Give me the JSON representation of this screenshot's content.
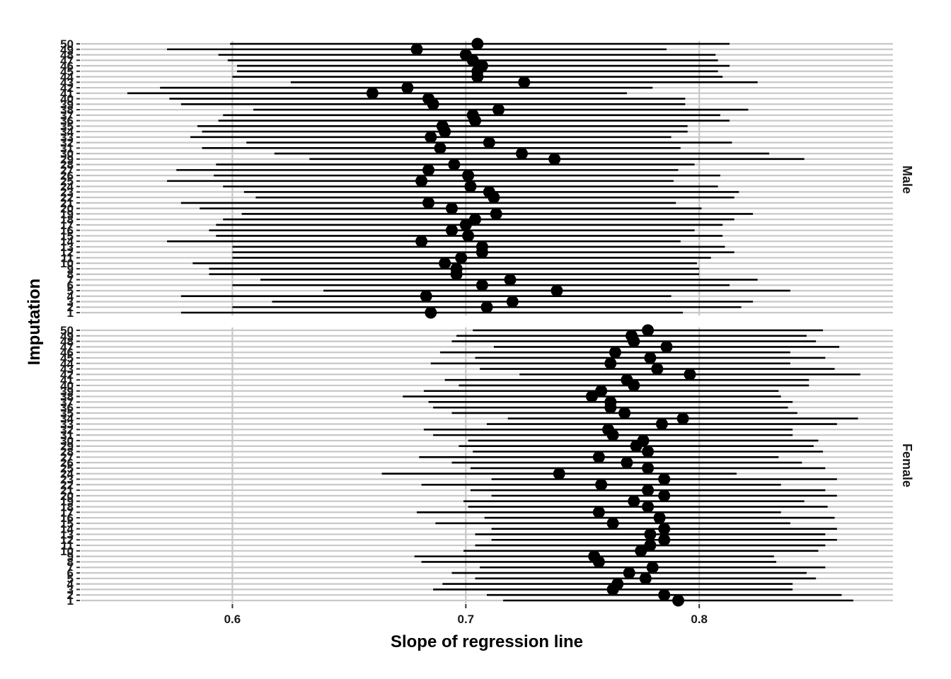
{
  "chart_data": {
    "type": "errorbar-dot",
    "xlabel": "Slope of regression line",
    "ylabel": "Imputation",
    "x_ticks": [
      "0.6",
      "0.7",
      "0.8"
    ],
    "xlim": [
      0.535,
      0.883
    ],
    "ylim": [
      1,
      50
    ],
    "grid": true,
    "colors": {
      "grid": "#c8c8c8",
      "mark": "#000000",
      "background": "#ffffff"
    },
    "panels": [
      {
        "name": "Male",
        "estimates": [
          0.685,
          0.709,
          0.72,
          0.683,
          0.739,
          0.707,
          0.719,
          0.696,
          0.696,
          0.691,
          0.698,
          0.707,
          0.707,
          0.681,
          0.701,
          0.694,
          0.7,
          0.704,
          0.713,
          0.694,
          0.684,
          0.712,
          0.71,
          0.702,
          0.681,
          0.701,
          0.684,
          0.695,
          0.738,
          0.724,
          0.689,
          0.71,
          0.685,
          0.691,
          0.69,
          0.704,
          0.703,
          0.714,
          0.686,
          0.684,
          0.66,
          0.675,
          0.725,
          0.705,
          0.705,
          0.707,
          0.703,
          0.7,
          0.679,
          0.705
        ],
        "lower": [
          0.578,
          0.6,
          0.617,
          0.578,
          0.639,
          0.6,
          0.612,
          0.59,
          0.59,
          0.583,
          0.6,
          0.6,
          0.6,
          0.572,
          0.593,
          0.59,
          0.593,
          0.596,
          0.604,
          0.586,
          0.578,
          0.61,
          0.605,
          0.596,
          0.572,
          0.592,
          0.576,
          0.593,
          0.633,
          0.618,
          0.587,
          0.606,
          0.582,
          0.587,
          0.585,
          0.594,
          0.596,
          0.609,
          0.578,
          0.573,
          0.555,
          0.569,
          0.625,
          0.6,
          0.602,
          0.602,
          0.598,
          0.594,
          0.572,
          0.599
        ],
        "upper": [
          0.793,
          0.818,
          0.823,
          0.788,
          0.839,
          0.813,
          0.825,
          0.8,
          0.8,
          0.799,
          0.805,
          0.815,
          0.811,
          0.792,
          0.81,
          0.798,
          0.81,
          0.815,
          0.823,
          0.801,
          0.79,
          0.815,
          0.817,
          0.808,
          0.789,
          0.809,
          0.791,
          0.798,
          0.845,
          0.83,
          0.792,
          0.814,
          0.788,
          0.795,
          0.795,
          0.813,
          0.809,
          0.821,
          0.794,
          0.794,
          0.769,
          0.78,
          0.825,
          0.81,
          0.808,
          0.813,
          0.808,
          0.807,
          0.786,
          0.813
        ]
      },
      {
        "name": "Female",
        "estimates": [
          0.791,
          0.785,
          0.763,
          0.765,
          0.777,
          0.77,
          0.78,
          0.757,
          0.755,
          0.775,
          0.779,
          0.785,
          0.779,
          0.785,
          0.763,
          0.783,
          0.757,
          0.778,
          0.772,
          0.785,
          0.778,
          0.758,
          0.785,
          0.74,
          0.778,
          0.769,
          0.757,
          0.778,
          0.773,
          0.776,
          0.763,
          0.761,
          0.784,
          0.793,
          0.768,
          0.762,
          0.762,
          0.754,
          0.758,
          0.772,
          0.769,
          0.796,
          0.782,
          0.762,
          0.779,
          0.764,
          0.786,
          0.772,
          0.771,
          0.778
        ],
        "lower": [
          0.716,
          0.709,
          0.686,
          0.69,
          0.704,
          0.694,
          0.706,
          0.681,
          0.678,
          0.699,
          0.704,
          0.711,
          0.704,
          0.711,
          0.687,
          0.708,
          0.679,
          0.701,
          0.699,
          0.711,
          0.702,
          0.681,
          0.711,
          0.664,
          0.702,
          0.694,
          0.68,
          0.703,
          0.697,
          0.701,
          0.686,
          0.682,
          0.709,
          0.718,
          0.694,
          0.686,
          0.684,
          0.673,
          0.682,
          0.697,
          0.691,
          0.723,
          0.706,
          0.685,
          0.704,
          0.689,
          0.712,
          0.694,
          0.696,
          0.703
        ]
      }
    ]
  }
}
